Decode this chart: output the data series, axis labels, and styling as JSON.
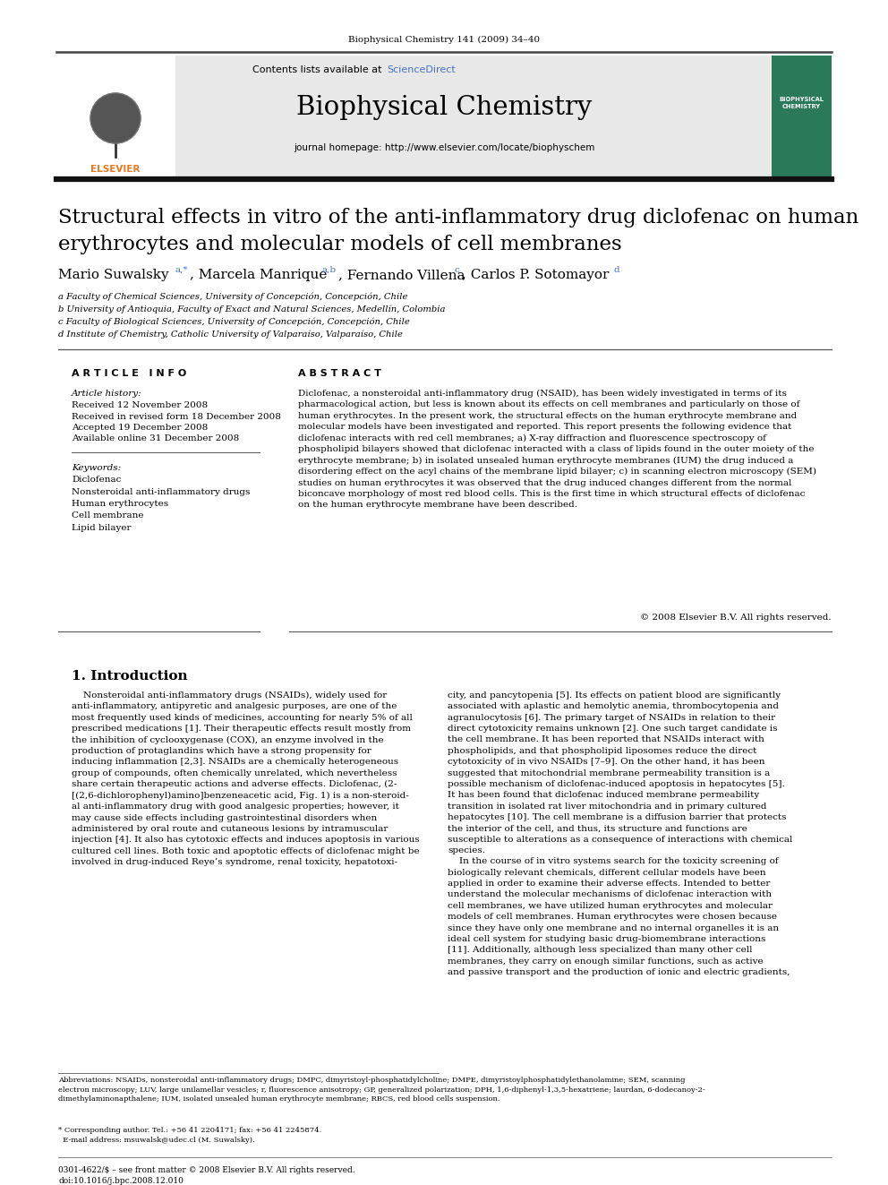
{
  "journal_header": "Biophysical Chemistry 141 (2009) 34–40",
  "contents_text": "Contents lists available at ScienceDirect",
  "science_direct_color": "#4472c4",
  "journal_name": "Biophysical Chemistry",
  "journal_homepage": "journal homepage: http://www.elsevier.com/locate/biophyschem",
  "header_bg": "#e8e8e8",
  "title": "Structural effects in vitro of the anti-inflammatory drug diclofenac on human\nerythrocytes and molecular models of cell membranes",
  "affil_a": "a Faculty of Chemical Sciences, University of Concepción, Concepción, Chile",
  "affil_b": "b University of Antioquia, Faculty of Exact and Natural Sciences, Medellín, Colombia",
  "affil_c": "c Faculty of Biological Sciences, University of Concepción, Concepción, Chile",
  "affil_d": "d Institute of Chemistry, Catholic University of Valparaíso, Valparaíso, Chile",
  "article_info_header": "A R T I C L E   I N F O",
  "abstract_header": "A B S T R A C T",
  "article_history_label": "Article history:",
  "received": "Received 12 November 2008",
  "received_revised": "Received in revised form 18 December 2008",
  "accepted": "Accepted 19 December 2008",
  "available_online": "Available online 31 December 2008",
  "keywords_label": "Keywords:",
  "keywords": [
    "Diclofenac",
    "Nonsteroidal anti-inflammatory drugs",
    "Human erythrocytes",
    "Cell membrane",
    "Lipid bilayer"
  ],
  "abstract_text": "Diclofenac, a nonsteroidal anti-inflammatory drug (NSAID), has been widely investigated in terms of its\npharmacological action, but less is known about its effects on cell membranes and particularly on those of\nhuman erythrocytes. In the present work, the structural effects on the human erythrocyte membrane and\nmolecular models have been investigated and reported. This report presents the following evidence that\ndiclofenac interacts with red cell membranes; a) X-ray diffraction and fluorescence spectroscopy of\nphospholipid bilayers showed that diclofenac interacted with a class of lipids found in the outer moiety of the\nerythrocyte membrane; b) in isolated unsealed human erythrocyte membranes (IUM) the drug induced a\ndisordering effect on the acyl chains of the membrane lipid bilayer; c) in scanning electron microscopy (SEM)\nstudies on human erythrocytes it was observed that the drug induced changes different from the normal\nbiconcave morphology of most red blood cells. This is the first time in which structural effects of diclofenac\non the human erythrocyte membrane have been described.",
  "copyright": "© 2008 Elsevier B.V. All rights reserved.",
  "intro_header": "1. Introduction",
  "intro_col1": "    Nonsteroidal anti-inflammatory drugs (NSAIDs), widely used for\nanti-inflammatory, antipyretic and analgesic purposes, are one of the\nmost frequently used kinds of medicines, accounting for nearly 5% of all\nprescribed medications [1]. Their therapeutic effects result mostly from\nthe inhibition of cyclooxygenase (COX), an enzyme involved in the\nproduction of protaglandins which have a strong propensity for\ninducing inflammation [2,3]. NSAIDs are a chemically heterogeneous\ngroup of compounds, often chemically unrelated, which nevertheless\nshare certain therapeutic actions and adverse effects. Diclofenac, (2-\n[(2,6-dichlorophenyl)amino]benzeneacetic acid, Fig. 1) is a non-steroid-\nal anti-inflammatory drug with good analgesic properties; however, it\nmay cause side effects including gastrointestinal disorders when\nadministered by oral route and cutaneous lesions by intramuscular\ninjection [4]. It also has cytotoxic effects and induces apoptosis in various\ncultured cell lines. Both toxic and apoptotic effects of diclofenac might be\ninvolved in drug-induced Reye’s syndrome, renal toxicity, hepatotoxi-",
  "intro_col2": "city, and pancytopenia [5]. Its effects on patient blood are significantly\nassociated with aplastic and hemolytic anemia, thrombocytopenia and\nagranulocytosis [6]. The primary target of NSAIDs in relation to their\ndirect cytotoxicity remains unknown [2]. One such target candidate is\nthe cell membrane. It has been reported that NSAIDs interact with\nphospholipids, and that phospholipid liposomes reduce the direct\ncytotoxicity of in vivo NSAIDs [7–9]. On the other hand, it has been\nsuggested that mitochondrial membrane permeability transition is a\npossible mechanism of diclofenac-induced apoptosis in hepatocytes [5].\nIt has been found that diclofenac induced membrane permeability\ntransition in isolated rat liver mitochondria and in primary cultured\nhepatocytes [10]. The cell membrane is a diffusion barrier that protects\nthe interior of the cell, and thus, its structure and functions are\nsusceptible to alterations as a consequence of interactions with chemical\nspecies.\n    In the course of in vitro systems search for the toxicity screening of\nbiologically relevant chemicals, different cellular models have been\napplied in order to examine their adverse effects. Intended to better\nunderstand the molecular mechanisms of diclofenac interaction with\ncell membranes, we have utilized human erythrocytes and molecular\nmodels of cell membranes. Human erythrocytes were chosen because\nsince they have only one membrane and no internal organelles it is an\nideal cell system for studying basic drug-biomembrane interactions\n[11]. Additionally, although less specialized than many other cell\nmembranes, they carry on enough similar functions, such as active\nand passive transport and the production of ionic and electric gradients,",
  "footnote_abbrev": "Abbreviations: NSAIDs, nonsteroidal anti-inflammatory drugs; DMPC, dimyristoyl-phosphatidylcholine; DMPE, dimyristoylphosphatidylethanolamine; SEM, scanning\nelectron microscopy; LUV, large unilamellar vesicles; r, fluorescence anisotropy; GP, generalized polarization; DPH, 1,6-diphenyl-1,3,5-hexatriene; laurdan, 6-dodecanoy-2-\ndimethylaminonapthalene; IUM, isolated unsealed human erythrocyte membrane; RBCS, red blood cells suspension.",
  "footnote_corresponding": "* Corresponding author. Tel.: +56 41 2204171; fax: +56 41 2245874.\n  E-mail address: msuwalsk@udec.cl (M. Suwalsky).",
  "footer_left": "0301-4622/$ – see front matter © 2008 Elsevier B.V. All rights reserved.",
  "footer_doi": "doi:10.1016/j.bpc.2008.12.010",
  "bg_color": "#ffffff",
  "text_color": "#000000",
  "link_color": "#4472c4",
  "header_border_color": "#000000"
}
